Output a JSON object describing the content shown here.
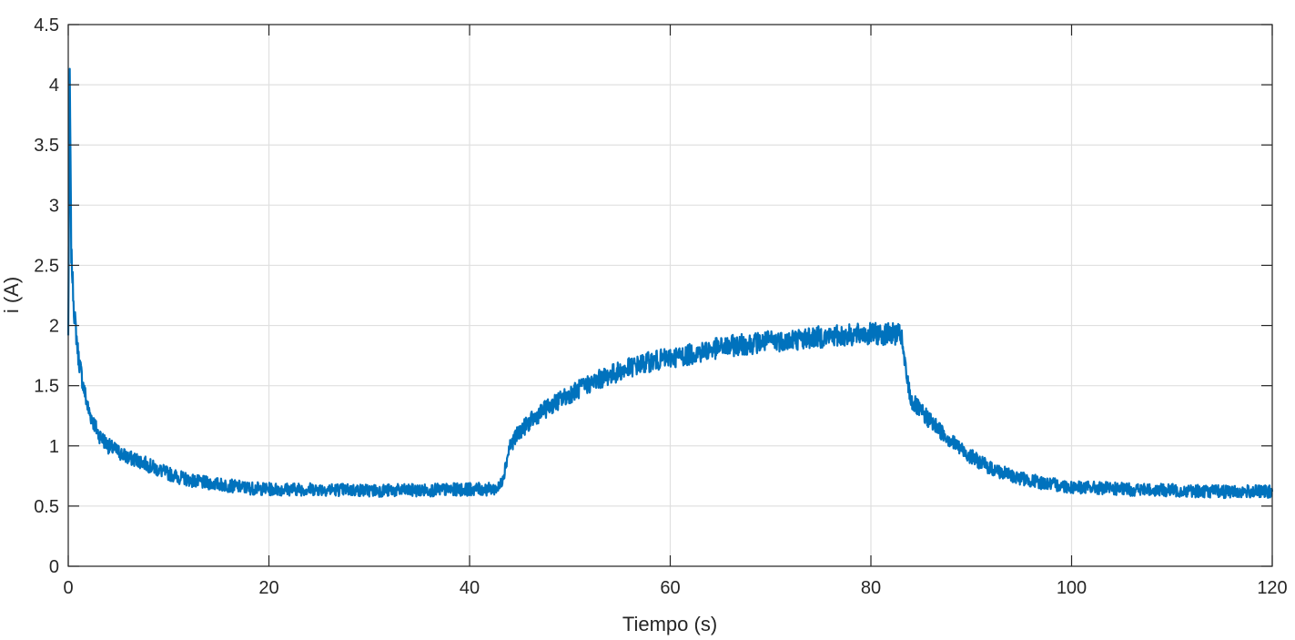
{
  "chart_data": {
    "type": "line",
    "title": "",
    "xlabel": "Tiempo (s)",
    "ylabel": "i (A)",
    "xlim": [
      0,
      120
    ],
    "ylim": [
      0,
      4.5
    ],
    "xticks": [
      0,
      20,
      40,
      60,
      80,
      100,
      120
    ],
    "xtick_labels": [
      "0",
      "20",
      "40",
      "60",
      "80",
      "100",
      "120"
    ],
    "yticks": [
      0,
      0.5,
      1,
      1.5,
      2,
      2.5,
      3,
      3.5,
      4,
      4.5
    ],
    "ytick_labels": [
      "0",
      "0.5",
      "1",
      "1.5",
      "2",
      "2.5",
      "3",
      "3.5",
      "4",
      "4.5"
    ],
    "grid": true,
    "legend": "none",
    "series": [
      {
        "color": "#0072bd",
        "x": [
          0,
          0.15,
          0.3,
          0.6,
          1,
          1.5,
          2,
          3,
          4,
          5,
          6,
          7,
          8,
          9,
          10,
          11,
          12,
          13,
          14,
          15,
          16,
          18,
          20,
          25,
          30,
          35,
          40,
          42,
          43,
          43.5,
          44,
          45,
          46,
          47,
          48,
          50,
          52,
          54,
          56,
          58,
          60,
          62,
          64,
          66,
          68,
          70,
          72,
          74,
          76,
          78,
          80,
          82,
          83,
          83.5,
          84,
          85,
          86,
          87,
          88,
          89,
          90,
          91,
          92,
          93,
          94,
          95,
          96,
          98,
          100,
          105,
          110,
          115,
          118,
          120
        ],
        "y": [
          1.9,
          4.1,
          2.6,
          2.1,
          1.75,
          1.5,
          1.3,
          1.1,
          1.0,
          0.95,
          0.9,
          0.88,
          0.84,
          0.8,
          0.77,
          0.74,
          0.72,
          0.7,
          0.69,
          0.68,
          0.67,
          0.65,
          0.64,
          0.64,
          0.63,
          0.63,
          0.64,
          0.64,
          0.65,
          0.8,
          1.0,
          1.12,
          1.2,
          1.27,
          1.33,
          1.43,
          1.52,
          1.59,
          1.65,
          1.7,
          1.73,
          1.76,
          1.8,
          1.83,
          1.85,
          1.87,
          1.88,
          1.9,
          1.91,
          1.92,
          1.93,
          1.93,
          1.92,
          1.6,
          1.38,
          1.28,
          1.2,
          1.12,
          1.04,
          0.97,
          0.91,
          0.86,
          0.81,
          0.78,
          0.75,
          0.73,
          0.71,
          0.68,
          0.66,
          0.64,
          0.63,
          0.62,
          0.62,
          0.62
        ]
      }
    ]
  }
}
